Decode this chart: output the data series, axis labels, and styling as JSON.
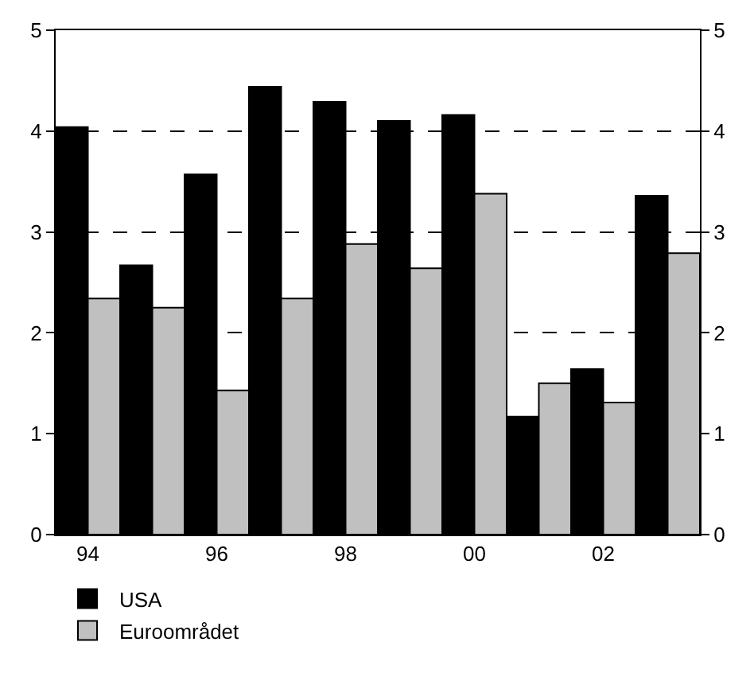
{
  "chart_data": {
    "type": "bar",
    "categories": [
      "94",
      null,
      "96",
      null,
      "98",
      null,
      "00",
      null,
      "02",
      null
    ],
    "series": [
      {
        "name": "USA",
        "color": "#000000",
        "values": [
          4.04,
          2.67,
          3.57,
          4.44,
          4.29,
          4.1,
          4.16,
          1.17,
          1.64,
          3.36
        ]
      },
      {
        "name": "Euroområdet",
        "color": "#c0c0c0",
        "values": [
          2.34,
          2.25,
          1.43,
          2.34,
          2.88,
          2.64,
          3.38,
          1.5,
          1.31,
          2.79
        ]
      }
    ],
    "ylim": [
      0,
      5
    ],
    "yticks": [
      0,
      1,
      2,
      3,
      4,
      5
    ],
    "y2lim": [
      0,
      5
    ],
    "y2ticks": [
      0,
      1,
      2,
      3,
      4,
      5
    ],
    "grid": "y",
    "legend": "bottom left"
  }
}
